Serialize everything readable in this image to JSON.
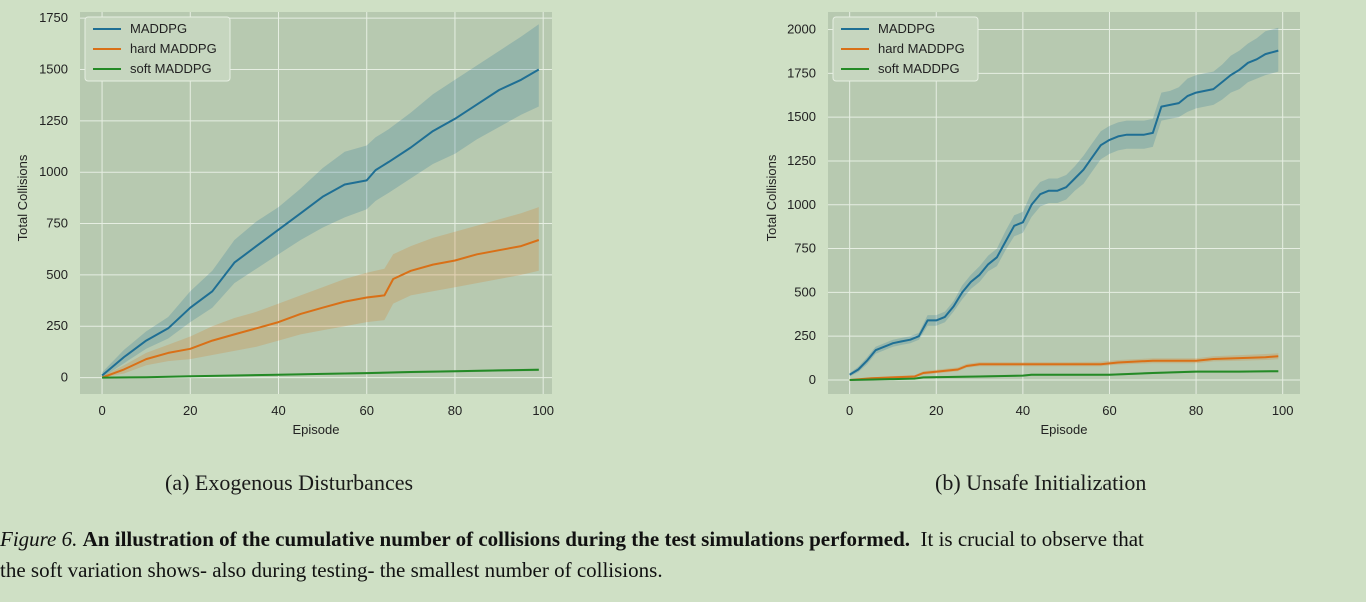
{
  "charts": [
    {
      "panel": "a",
      "subcaption": "(a) Exogenous Disturbances"
    },
    {
      "panel": "b",
      "subcaption": "(b) Unsafe Initialization"
    }
  ],
  "figure_caption": {
    "label": "Figure 6.",
    "title": "An illustration of the cumulative number of collisions during the test simulations performed.",
    "line1_rest": "It is crucial to observe that",
    "line2": "the soft variation shows- also during testing- the smallest number of collisions."
  },
  "colors": {
    "background": "#cfe0c5",
    "plot_area": "#b7c9b0",
    "grid": "#e6eee2",
    "maddpg": "#1f6f94",
    "hard": "#d97017",
    "soft": "#248a26"
  },
  "chart_data": [
    {
      "type": "line",
      "xlabel": "Episode",
      "ylabel": "Total Collisions",
      "xlim": [
        -5,
        102
      ],
      "ylim": [
        -80,
        1780
      ],
      "xticks": [
        0,
        20,
        40,
        60,
        80,
        100
      ],
      "yticks": [
        0,
        250,
        500,
        750,
        1000,
        1250,
        1500,
        1750
      ],
      "legend_position": "top-left",
      "grid": true,
      "series": [
        {
          "name": "MADDPG",
          "color": "#1f6f94",
          "x": [
            0,
            5,
            10,
            15,
            20,
            25,
            30,
            35,
            40,
            45,
            50,
            55,
            60,
            62,
            65,
            70,
            75,
            80,
            85,
            90,
            95,
            99
          ],
          "y": [
            10,
            100,
            180,
            240,
            340,
            420,
            560,
            640,
            720,
            800,
            880,
            940,
            960,
            1010,
            1050,
            1120,
            1200,
            1260,
            1330,
            1400,
            1450,
            1500
          ],
          "lower": [
            0,
            70,
            140,
            190,
            270,
            340,
            460,
            530,
            600,
            670,
            730,
            780,
            820,
            860,
            900,
            970,
            1040,
            1090,
            1160,
            1220,
            1280,
            1320
          ],
          "upper": [
            25,
            135,
            225,
            295,
            420,
            520,
            670,
            760,
            830,
            920,
            1020,
            1100,
            1130,
            1170,
            1210,
            1290,
            1380,
            1450,
            1520,
            1590,
            1660,
            1720
          ]
        },
        {
          "name": "hard MADDPG",
          "color": "#d97017",
          "x": [
            0,
            5,
            10,
            15,
            20,
            25,
            30,
            35,
            40,
            45,
            50,
            55,
            60,
            64,
            66,
            70,
            75,
            80,
            85,
            90,
            95,
            99
          ],
          "y": [
            0,
            40,
            90,
            120,
            140,
            180,
            210,
            240,
            270,
            310,
            340,
            370,
            390,
            400,
            480,
            520,
            550,
            570,
            600,
            620,
            640,
            670
          ],
          "lower": [
            0,
            20,
            60,
            80,
            90,
            110,
            130,
            150,
            180,
            210,
            230,
            250,
            270,
            280,
            360,
            400,
            420,
            440,
            460,
            480,
            500,
            520
          ],
          "upper": [
            5,
            60,
            120,
            160,
            200,
            250,
            290,
            320,
            360,
            400,
            440,
            480,
            510,
            530,
            600,
            640,
            680,
            710,
            740,
            770,
            800,
            830
          ]
        },
        {
          "name": "soft MADDPG",
          "color": "#248a26",
          "x": [
            0,
            10,
            20,
            30,
            40,
            50,
            60,
            70,
            80,
            90,
            99
          ],
          "y": [
            0,
            2,
            6,
            10,
            14,
            18,
            22,
            27,
            31,
            35,
            38
          ],
          "lower": [
            0,
            0,
            3,
            7,
            10,
            14,
            17,
            21,
            25,
            29,
            32
          ],
          "upper": [
            1,
            4,
            9,
            13,
            18,
            22,
            27,
            32,
            36,
            40,
            44
          ]
        }
      ]
    },
    {
      "type": "line",
      "xlabel": "Episode",
      "ylabel": "Total Collisions",
      "xlim": [
        -5,
        104
      ],
      "ylim": [
        -80,
        2100
      ],
      "xticks": [
        0,
        20,
        40,
        60,
        80,
        100
      ],
      "yticks": [
        0,
        250,
        500,
        750,
        1000,
        1250,
        1500,
        1750,
        2000
      ],
      "legend_position": "top-left",
      "grid": true,
      "series": [
        {
          "name": "MADDPG",
          "color": "#1f6f94",
          "x": [
            0,
            2,
            4,
            6,
            8,
            10,
            12,
            14,
            16,
            18,
            20,
            22,
            24,
            26,
            28,
            30,
            32,
            34,
            36,
            38,
            40,
            42,
            44,
            46,
            48,
            50,
            52,
            54,
            56,
            58,
            60,
            62,
            64,
            66,
            68,
            70,
            72,
            74,
            76,
            78,
            80,
            82,
            84,
            86,
            88,
            90,
            92,
            94,
            96,
            99
          ],
          "y": [
            30,
            60,
            110,
            170,
            190,
            210,
            220,
            230,
            250,
            340,
            340,
            360,
            420,
            500,
            560,
            600,
            660,
            700,
            790,
            880,
            900,
            1000,
            1060,
            1080,
            1080,
            1100,
            1150,
            1200,
            1270,
            1340,
            1370,
            1390,
            1400,
            1400,
            1400,
            1410,
            1560,
            1570,
            1580,
            1620,
            1640,
            1650,
            1660,
            1700,
            1740,
            1770,
            1810,
            1830,
            1860,
            1880
          ],
          "lower": [
            20,
            45,
            90,
            150,
            170,
            190,
            200,
            210,
            230,
            310,
            310,
            330,
            390,
            460,
            520,
            560,
            620,
            650,
            740,
            820,
            840,
            930,
            990,
            1010,
            1010,
            1030,
            1080,
            1120,
            1190,
            1260,
            1290,
            1310,
            1320,
            1320,
            1320,
            1330,
            1480,
            1490,
            1500,
            1530,
            1550,
            1560,
            1570,
            1600,
            1640,
            1660,
            1700,
            1720,
            1740,
            1760
          ],
          "upper": [
            40,
            75,
            130,
            190,
            210,
            230,
            240,
            250,
            270,
            370,
            370,
            390,
            450,
            540,
            600,
            650,
            710,
            750,
            850,
            940,
            960,
            1070,
            1130,
            1150,
            1150,
            1170,
            1220,
            1280,
            1350,
            1420,
            1450,
            1470,
            1480,
            1480,
            1480,
            1490,
            1640,
            1650,
            1670,
            1720,
            1740,
            1750,
            1760,
            1800,
            1850,
            1880,
            1920,
            1950,
            1990,
            2010
          ]
        },
        {
          "name": "hard MADDPG",
          "color": "#d97017",
          "x": [
            0,
            5,
            10,
            15,
            17,
            25,
            27,
            30,
            40,
            50,
            58,
            62,
            70,
            80,
            84,
            90,
            96,
            99
          ],
          "y": [
            0,
            10,
            15,
            20,
            40,
            60,
            80,
            90,
            90,
            90,
            90,
            100,
            110,
            110,
            120,
            125,
            130,
            135
          ],
          "lower": [
            0,
            5,
            8,
            12,
            30,
            50,
            70,
            78,
            78,
            78,
            78,
            88,
            96,
            96,
            106,
            110,
            114,
            118
          ],
          "upper": [
            3,
            15,
            22,
            28,
            50,
            72,
            92,
            102,
            102,
            102,
            104,
            114,
            124,
            124,
            136,
            142,
            148,
            152
          ]
        },
        {
          "name": "soft MADDPG",
          "color": "#248a26",
          "x": [
            0,
            10,
            15,
            17,
            30,
            40,
            42,
            60,
            70,
            80,
            90,
            99
          ],
          "y": [
            0,
            5,
            8,
            15,
            20,
            25,
            30,
            30,
            40,
            48,
            48,
            50
          ],
          "lower": [
            0,
            2,
            5,
            10,
            15,
            20,
            24,
            24,
            34,
            42,
            42,
            44
          ],
          "upper": [
            2,
            8,
            12,
            20,
            26,
            31,
            36,
            36,
            46,
            54,
            54,
            56
          ]
        }
      ]
    }
  ]
}
